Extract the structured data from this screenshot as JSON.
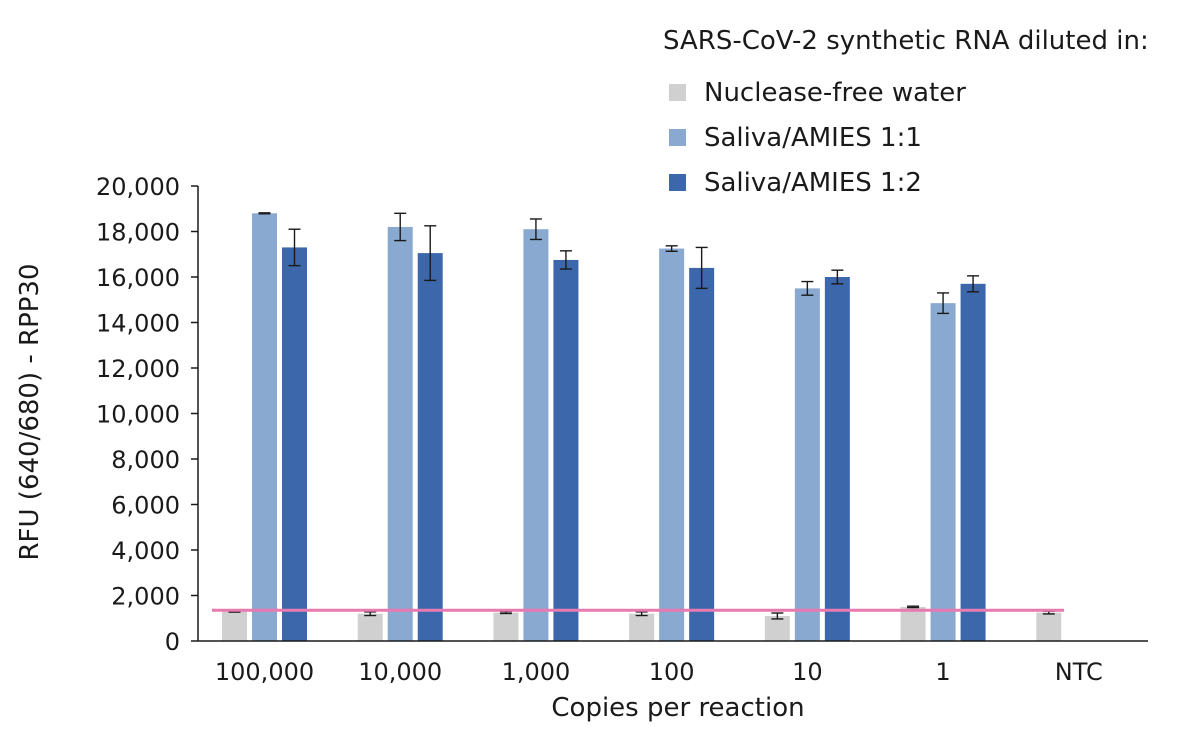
{
  "chart_data": {
    "type": "bar",
    "title": "",
    "xlabel": "Copies per reaction",
    "ylabel": "RFU (640/680) - RPP30",
    "ylim": [
      0,
      20000
    ],
    "yticks": [
      0,
      2000,
      4000,
      6000,
      8000,
      10000,
      12000,
      14000,
      16000,
      18000,
      20000
    ],
    "ytick_labels": [
      "0",
      "2,000",
      "4,000",
      "6,000",
      "8,000",
      "10,000",
      "12,000",
      "14,000",
      "16,000",
      "18,000",
      "20,000"
    ],
    "categories": [
      "100,000",
      "10,000",
      "1,000",
      "100",
      "10",
      "1",
      "NTC"
    ],
    "legend_title": "SARS-CoV-2 synthetic RNA diluted in:",
    "legend_position": "top-right",
    "grid": false,
    "series": [
      {
        "name": "Nuclease-free water",
        "color": "#d0d0d0",
        "values": [
          1300,
          1200,
          1250,
          1200,
          1100,
          1500,
          1250
        ],
        "errors": [
          30,
          80,
          40,
          80,
          130,
          30,
          60
        ]
      },
      {
        "name": "Saliva/AMIES 1:1",
        "color": "#8aa9d0",
        "values": [
          18800,
          18200,
          18100,
          17250,
          15500,
          14850,
          null
        ],
        "errors": [
          20,
          600,
          450,
          120,
          300,
          450,
          null
        ]
      },
      {
        "name": "Saliva/AMIES 1:2",
        "color": "#3c68ab",
        "values": [
          17300,
          17050,
          16750,
          16400,
          16000,
          15700,
          null
        ],
        "errors": [
          800,
          1200,
          400,
          900,
          300,
          350,
          null
        ]
      }
    ],
    "threshold": {
      "value": 1350,
      "color": "#e87ab1"
    }
  }
}
